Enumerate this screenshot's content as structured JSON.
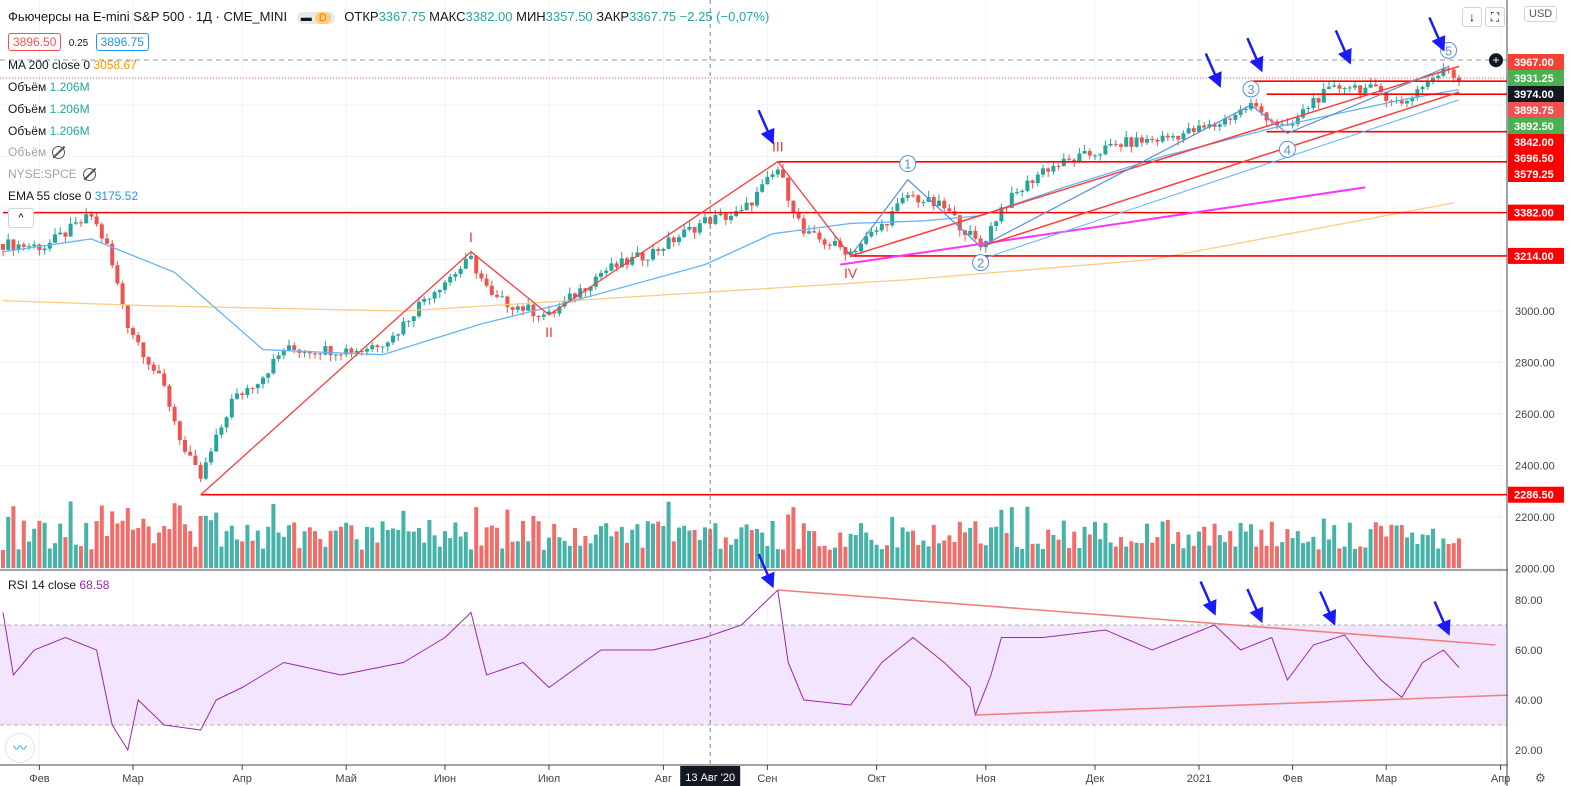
{
  "header": {
    "symbol": "Фьючерсы на E-mini S&P 500 · 1Д · CME_MINI",
    "badge": "D",
    "ohlc": [
      {
        "label": "ОТКР",
        "value": "3367.75"
      },
      {
        "label": "МАКС",
        "value": "3382.00"
      },
      {
        "label": "МИН",
        "value": "3357.50"
      },
      {
        "label": "ЗАКР",
        "value": "3367.75"
      }
    ],
    "change": "−2.25 (−0,07%)",
    "bid": "3896.50",
    "spread": "0.25",
    "ask": "3896.75",
    "currency": "USD"
  },
  "indicators": {
    "ma200_label": "MA 200 close 0",
    "ma200_value": "3058.67",
    "vol_label": "Объём",
    "vol_value": "1.206M",
    "spce_label": "NYSE:SPCE",
    "ema_label": "EMA 55 close 0",
    "ema_value": "3175.52",
    "rsi_label": "RSI 14 close",
    "rsi_value": "68.58"
  },
  "chart_data": {
    "type": "candlestick",
    "price_axis": {
      "ticks": [
        "2000.00",
        "2200.00",
        "2400.00",
        "2600.00",
        "2800.00",
        "3000.00"
      ],
      "range": [
        2000,
        3980
      ]
    },
    "price_labels": [
      {
        "text": "3967.00",
        "price": 3967,
        "color": "#f44336"
      },
      {
        "text": "3931.25",
        "price": 3931.25,
        "color": "#4caf50"
      },
      {
        "text": "3974.00",
        "price": 3974,
        "color": "#131722"
      },
      {
        "text": "3899.75",
        "price": 3899.75,
        "color": "#ef5350"
      },
      {
        "text": "3892.50",
        "price": 3892.5,
        "color": "#4caf50"
      },
      {
        "text": "3842.00",
        "price": 3842,
        "color": "#ff0000"
      },
      {
        "text": "3696.50",
        "price": 3696.5,
        "color": "#ff0000"
      },
      {
        "text": "3579.25",
        "price": 3579.25,
        "color": "#ff0000"
      },
      {
        "text": "3382.00",
        "price": 3382,
        "color": "#ff0000"
      },
      {
        "text": "3214.00",
        "price": 3214,
        "color": "#ff0000"
      },
      {
        "text": "2286.50",
        "price": 2286.5,
        "color": "#ff0000"
      }
    ],
    "rsi_axis": {
      "ticks": [
        "20.00",
        "40.00",
        "60.00",
        "80.00"
      ],
      "band": [
        30,
        70
      ]
    },
    "time_axis": [
      {
        "label": "Фев",
        "bar": 7
      },
      {
        "label": "Мар",
        "bar": 25
      },
      {
        "label": "Апр",
        "bar": 46
      },
      {
        "label": "Май",
        "bar": 66
      },
      {
        "label": "Июн",
        "bar": 85
      },
      {
        "label": "Июл",
        "bar": 105
      },
      {
        "label": "Авг",
        "bar": 127
      },
      {
        "label": "Сен",
        "bar": 147
      },
      {
        "label": "Окт",
        "bar": 168
      },
      {
        "label": "Ноя",
        "bar": 189
      },
      {
        "label": "Дек",
        "bar": 210
      },
      {
        "label": "2021",
        "bar": 230
      },
      {
        "label": "Фев",
        "bar": 248
      },
      {
        "label": "Мар",
        "bar": 266
      },
      {
        "label": "Апр",
        "bar": 288
      }
    ],
    "crosshair": {
      "label": "13 Авг '20",
      "bar": 136
    },
    "bars": 281,
    "close_anchors": [
      [
        0,
        3260
      ],
      [
        8,
        3250
      ],
      [
        17,
        3370
      ],
      [
        20,
        3250
      ],
      [
        24,
        2950
      ],
      [
        31,
        2700
      ],
      [
        35,
        2450
      ],
      [
        38,
        2350
      ],
      [
        44,
        2650
      ],
      [
        50,
        2750
      ],
      [
        54,
        2850
      ],
      [
        62,
        2850
      ],
      [
        69,
        2850
      ],
      [
        75,
        2900
      ],
      [
        81,
        3050
      ],
      [
        90,
        3200
      ],
      [
        94,
        3050
      ],
      [
        105,
        2980
      ],
      [
        115,
        3150
      ],
      [
        125,
        3230
      ],
      [
        135,
        3350
      ],
      [
        142,
        3380
      ],
      [
        149,
        3550
      ],
      [
        154,
        3300
      ],
      [
        163,
        3230
      ],
      [
        169,
        3330
      ],
      [
        174,
        3450
      ],
      [
        181,
        3400
      ],
      [
        188,
        3250
      ],
      [
        192,
        3400
      ],
      [
        200,
        3550
      ],
      [
        208,
        3600
      ],
      [
        215,
        3650
      ],
      [
        223,
        3670
      ],
      [
        233,
        3720
      ],
      [
        240,
        3800
      ],
      [
        247,
        3700
      ],
      [
        252,
        3820
      ],
      [
        258,
        3880
      ],
      [
        265,
        3850
      ],
      [
        269,
        3800
      ],
      [
        273,
        3880
      ],
      [
        278,
        3940
      ],
      [
        280,
        3895
      ]
    ],
    "ma200": [
      [
        0,
        3040
      ],
      [
        29,
        3020
      ],
      [
        77,
        3000
      ],
      [
        125,
        3060
      ],
      [
        173,
        3120
      ],
      [
        221,
        3200
      ],
      [
        279,
        3420
      ]
    ],
    "ema55": [
      [
        0,
        3230
      ],
      [
        17,
        3280
      ],
      [
        33,
        3150
      ],
      [
        50,
        2850
      ],
      [
        73,
        2830
      ],
      [
        92,
        2950
      ],
      [
        108,
        3030
      ],
      [
        135,
        3180
      ],
      [
        148,
        3300
      ],
      [
        163,
        3340
      ],
      [
        177,
        3350
      ],
      [
        188,
        3370
      ],
      [
        204,
        3480
      ],
      [
        223,
        3600
      ],
      [
        246,
        3720
      ],
      [
        269,
        3820
      ],
      [
        280,
        3860
      ]
    ],
    "rsi": [
      [
        0,
        75
      ],
      [
        2,
        50
      ],
      [
        6,
        60
      ],
      [
        12,
        65
      ],
      [
        18,
        60
      ],
      [
        21,
        30
      ],
      [
        24,
        20
      ],
      [
        26,
        40
      ],
      [
        31,
        30
      ],
      [
        38,
        28
      ],
      [
        41,
        40
      ],
      [
        46,
        45
      ],
      [
        54,
        55
      ],
      [
        65,
        50
      ],
      [
        77,
        55
      ],
      [
        85,
        65
      ],
      [
        90,
        75
      ],
      [
        93,
        50
      ],
      [
        100,
        55
      ],
      [
        105,
        45
      ],
      [
        115,
        60
      ],
      [
        125,
        60
      ],
      [
        135,
        65
      ],
      [
        142,
        70
      ],
      [
        149,
        84
      ],
      [
        151,
        55
      ],
      [
        154,
        40
      ],
      [
        163,
        38
      ],
      [
        169,
        55
      ],
      [
        175,
        65
      ],
      [
        181,
        55
      ],
      [
        186,
        45
      ],
      [
        187,
        34
      ],
      [
        190,
        50
      ],
      [
        192,
        65
      ],
      [
        200,
        65
      ],
      [
        212,
        68
      ],
      [
        221,
        60
      ],
      [
        233,
        70
      ],
      [
        238,
        60
      ],
      [
        244,
        65
      ],
      [
        247,
        48
      ],
      [
        252,
        62
      ],
      [
        258,
        66
      ],
      [
        262,
        55
      ],
      [
        265,
        48
      ],
      [
        269,
        41
      ],
      [
        273,
        55
      ],
      [
        277,
        60
      ],
      [
        280,
        53
      ]
    ],
    "levels": [
      {
        "price": 3382,
        "from": 0
      },
      {
        "price": 3214,
        "from": 163
      },
      {
        "price": 3579.25,
        "from": 149
      },
      {
        "price": 3696.5,
        "from": 243
      },
      {
        "price": 3842,
        "from": 243
      },
      {
        "price": 3892.5,
        "from": 240
      },
      {
        "price": 2286.5,
        "from": 38
      }
    ],
    "wave_major": {
      "points": [
        [
          38,
          2286
        ],
        [
          90,
          3230
        ],
        [
          105,
          2985
        ],
        [
          149,
          3580
        ],
        [
          163,
          3214
        ]
      ],
      "labels": [
        "I",
        "II",
        "III",
        "IV"
      ]
    },
    "wave_minor": {
      "points": [
        [
          163,
          3214
        ],
        [
          174,
          3510
        ],
        [
          188,
          3250
        ],
        [
          240,
          3800
        ],
        [
          247,
          3690
        ],
        [
          278,
          3950
        ]
      ],
      "labels": [
        "1",
        "2",
        "3",
        "4",
        "5"
      ]
    },
    "arrows_price": [
      [
        148,
        3640
      ],
      [
        234,
        3860
      ],
      [
        242,
        3920
      ],
      [
        259,
        3950
      ],
      [
        277,
        4000
      ]
    ],
    "arrows_rsi": [
      [
        148,
        84
      ],
      [
        233,
        73
      ],
      [
        242,
        70
      ],
      [
        256,
        69
      ],
      [
        278,
        65
      ]
    ],
    "rsi_trend": [
      [
        [
          149,
          84
        ],
        [
          287,
          62
        ]
      ],
      [
        [
          187,
          34
        ],
        [
          290,
          42
        ]
      ]
    ]
  }
}
